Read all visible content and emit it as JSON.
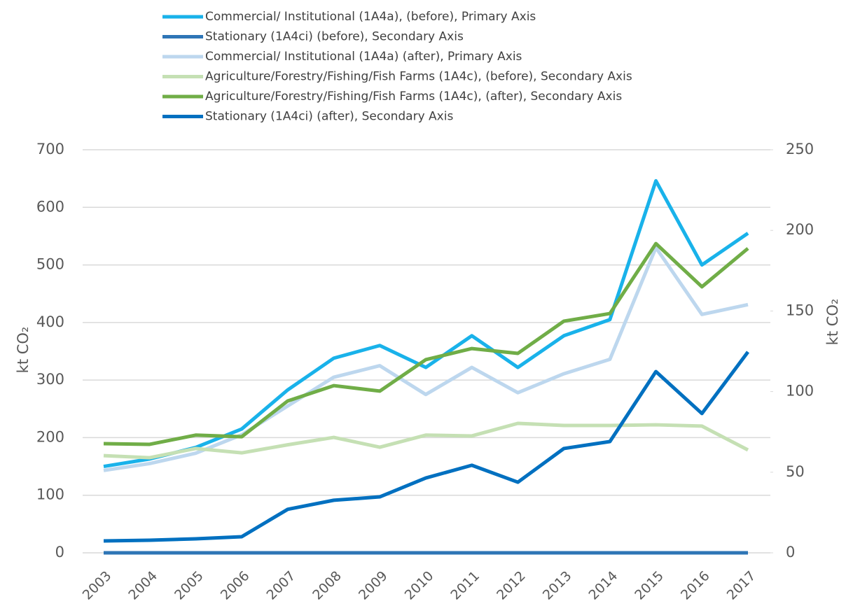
{
  "chart_data": {
    "type": "line",
    "ylabel": "kt CO₂",
    "y2label": "kt CO₂",
    "categories": [
      "2003",
      "2004",
      "2005",
      "2006",
      "2007",
      "2008",
      "2009",
      "2010",
      "2011",
      "2012",
      "2013",
      "2014",
      "2015",
      "2016",
      "2017"
    ],
    "ylim": [
      0,
      700
    ],
    "yticks": [
      0,
      100,
      200,
      300,
      400,
      500,
      600,
      700
    ],
    "y2lim": [
      0,
      250
    ],
    "y2ticks": [
      0,
      50,
      100,
      150,
      200,
      250
    ],
    "grid": true,
    "legend": "top",
    "series": [
      {
        "name": "Commercial/ Institutional (1A4a), (before), Primary Axis",
        "color": "#19b2ea",
        "axis": "y",
        "values": [
          150,
          163,
          183,
          215,
          283,
          338,
          360,
          322,
          377,
          322,
          377,
          405,
          646,
          500,
          555
        ]
      },
      {
        "name": "Stationary (1A4ci) (before), Secondary Axis",
        "color": "#2e75b6",
        "axis": "y2",
        "values": [
          0,
          0,
          0,
          0,
          0,
          0,
          0,
          0,
          0,
          0,
          0,
          0,
          0,
          0,
          0
        ]
      },
      {
        "name": "Commercial/ Institutional (1A4a) (after), Primary Axis",
        "color": "#bdd7ee",
        "axis": "y",
        "values": [
          143,
          155,
          173,
          205,
          255,
          305,
          325,
          275,
          322,
          278,
          311,
          336,
          530,
          414,
          431
        ]
      },
      {
        "name": "Agriculture/Forestry/Fishing/Fish Farms (1A4c), (before), Secondary Axis",
        "color": "#c5e0b4",
        "axis": "y2",
        "values": [
          60.3,
          59,
          64.7,
          62,
          67,
          71.6,
          65.5,
          73,
          72.5,
          80.3,
          79,
          79,
          79.4,
          78.6,
          63.8
        ]
      },
      {
        "name": "Agriculture/Forestry/Fishing/Fish Farms (1A4c), (after), Secondary Axis",
        "color": "#70ad47",
        "axis": "y2",
        "values": [
          67.7,
          67.3,
          73,
          72,
          94.2,
          103.7,
          100.3,
          119.8,
          126.7,
          123.7,
          143.7,
          148.4,
          191.8,
          165,
          188.8
        ]
      },
      {
        "name": "Stationary (1A4ci) (after), Secondary Axis",
        "color": "#0070c0",
        "axis": "y2",
        "values": [
          7.4,
          7.8,
          8.7,
          10,
          27,
          32.6,
          34.7,
          46.4,
          54.3,
          43.8,
          64.7,
          69,
          112.4,
          86.4,
          124.6
        ]
      }
    ]
  }
}
